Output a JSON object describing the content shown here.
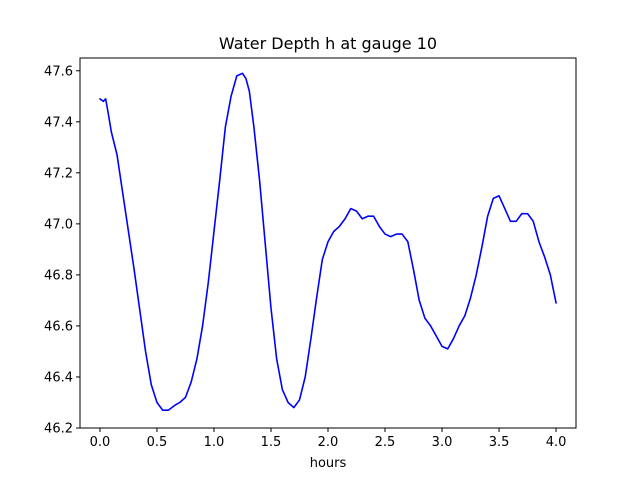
{
  "chart_data": {
    "type": "line",
    "title": "Water Depth h at gauge 10",
    "xlabel": "hours",
    "ylabel": "",
    "xlim": [
      -0.175,
      4.175
    ],
    "ylim": [
      46.2,
      47.65
    ],
    "xticks": [
      0.0,
      0.5,
      1.0,
      1.5,
      2.0,
      2.5,
      3.0,
      3.5,
      4.0
    ],
    "xtick_labels": [
      "0.0",
      "0.5",
      "1.0",
      "1.5",
      "2.0",
      "2.5",
      "3.0",
      "3.5",
      "4.0"
    ],
    "yticks": [
      46.2,
      46.4,
      46.6,
      46.8,
      47.0,
      47.2,
      47.4,
      47.6
    ],
    "ytick_labels": [
      "46.2",
      "46.4",
      "46.6",
      "46.8",
      "47.0",
      "47.2",
      "47.4",
      "47.6"
    ],
    "grid": false,
    "series": [
      {
        "name": "",
        "color": "#0000ff",
        "x": [
          0.0,
          0.03,
          0.05,
          0.07,
          0.1,
          0.15,
          0.2,
          0.25,
          0.3,
          0.35,
          0.4,
          0.45,
          0.5,
          0.55,
          0.6,
          0.63,
          0.66,
          0.7,
          0.75,
          0.8,
          0.85,
          0.9,
          0.95,
          1.0,
          1.05,
          1.1,
          1.15,
          1.2,
          1.25,
          1.28,
          1.31,
          1.35,
          1.4,
          1.45,
          1.5,
          1.55,
          1.6,
          1.65,
          1.7,
          1.75,
          1.8,
          1.85,
          1.9,
          1.95,
          2.0,
          2.05,
          2.1,
          2.15,
          2.2,
          2.25,
          2.3,
          2.35,
          2.4,
          2.45,
          2.5,
          2.55,
          2.6,
          2.65,
          2.7,
          2.75,
          2.8,
          2.85,
          2.9,
          2.95,
          3.0,
          3.05,
          3.1,
          3.15,
          3.2,
          3.25,
          3.3,
          3.35,
          3.4,
          3.45,
          3.5,
          3.53,
          3.56,
          3.6,
          3.65,
          3.7,
          3.75,
          3.8,
          3.85,
          3.9,
          3.95,
          4.0
        ],
        "y": [
          47.49,
          47.48,
          47.49,
          47.44,
          47.36,
          47.27,
          47.12,
          46.97,
          46.82,
          46.66,
          46.5,
          46.37,
          46.3,
          46.27,
          46.27,
          46.28,
          46.29,
          46.3,
          46.32,
          46.38,
          46.47,
          46.6,
          46.77,
          46.97,
          47.17,
          47.38,
          47.5,
          47.58,
          47.59,
          47.57,
          47.52,
          47.38,
          47.17,
          46.92,
          46.67,
          46.47,
          46.35,
          46.3,
          46.28,
          46.31,
          46.4,
          46.55,
          46.71,
          46.86,
          46.93,
          46.97,
          46.99,
          47.02,
          47.06,
          47.05,
          47.02,
          47.03,
          47.03,
          46.99,
          46.96,
          46.95,
          46.96,
          46.96,
          46.93,
          46.82,
          46.7,
          46.63,
          46.6,
          46.56,
          46.52,
          46.51,
          46.55,
          46.6,
          46.64,
          46.71,
          46.8,
          46.91,
          47.03,
          47.1,
          47.11,
          47.08,
          47.05,
          47.01,
          47.01,
          47.04,
          47.04,
          47.01,
          46.93,
          46.87,
          46.8,
          46.69
        ]
      }
    ]
  }
}
